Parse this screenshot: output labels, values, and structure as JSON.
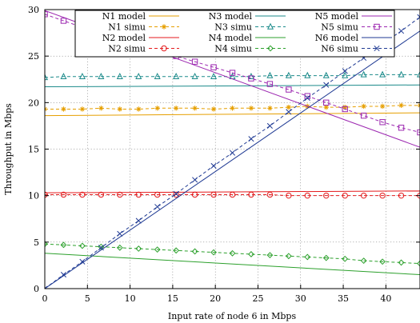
{
  "chart_data": {
    "type": "line",
    "xlabel": "Input rate of node 6 in Mbps",
    "ylabel": "Throughput in Mbps",
    "xlim": [
      0,
      44
    ],
    "ylim": [
      0,
      30
    ],
    "xticks": [
      0,
      5,
      10,
      15,
      20,
      25,
      30,
      35,
      40
    ],
    "yticks": [
      0,
      5,
      10,
      15,
      20,
      25,
      30
    ],
    "grid": true,
    "legend_position": "top",
    "series": [
      {
        "name": "N1 model",
        "color": "#e69f00",
        "style": "solid",
        "marker": "none",
        "x": [
          0,
          44
        ],
        "y": [
          18.6,
          18.9
        ]
      },
      {
        "name": "N1 simu",
        "color": "#e69f00",
        "style": "dashed",
        "marker": "asterisk",
        "x": [
          0,
          2.2,
          4.4,
          6.6,
          8.8,
          11,
          13.2,
          15.4,
          17.6,
          19.8,
          22,
          24.2,
          26.4,
          28.6,
          30.8,
          33,
          35.2,
          37.4,
          39.6,
          41.8,
          44
        ],
        "y": [
          19.3,
          19.3,
          19.3,
          19.4,
          19.3,
          19.3,
          19.4,
          19.4,
          19.4,
          19.3,
          19.4,
          19.4,
          19.4,
          19.5,
          19.6,
          19.5,
          19.5,
          19.6,
          19.6,
          19.7,
          19.7
        ]
      },
      {
        "name": "N2 model",
        "color": "#e41a1c",
        "style": "solid",
        "marker": "none",
        "x": [
          0,
          44
        ],
        "y": [
          10.3,
          10.5
        ]
      },
      {
        "name": "N2 simu",
        "color": "#e41a1c",
        "style": "dashed",
        "marker": "circle",
        "x": [
          0,
          2.2,
          4.4,
          6.6,
          8.8,
          11,
          13.2,
          15.4,
          17.6,
          19.8,
          22,
          24.2,
          26.4,
          28.6,
          30.8,
          33,
          35.2,
          37.4,
          39.6,
          41.8,
          44
        ],
        "y": [
          10.1,
          10.1,
          10.1,
          10.1,
          10.1,
          10.1,
          10.1,
          10.1,
          10.1,
          10.1,
          10.1,
          10.1,
          10.1,
          10.0,
          10.0,
          10.0,
          10.0,
          10.0,
          10.0,
          10.0,
          10.0
        ]
      },
      {
        "name": "N3 model",
        "color": "#1b8a8a",
        "style": "solid",
        "marker": "none",
        "x": [
          0,
          44
        ],
        "y": [
          21.7,
          21.9
        ]
      },
      {
        "name": "N3 simu",
        "color": "#1b8a8a",
        "style": "dashed",
        "marker": "triangle",
        "x": [
          0,
          2.2,
          4.4,
          6.6,
          8.8,
          11,
          13.2,
          15.4,
          17.6,
          19.8,
          22,
          24.2,
          26.4,
          28.6,
          30.8,
          33,
          35.2,
          37.4,
          39.6,
          41.8,
          44
        ],
        "y": [
          22.7,
          22.8,
          22.8,
          22.8,
          22.8,
          22.8,
          22.8,
          22.8,
          22.8,
          22.8,
          22.8,
          22.8,
          22.9,
          22.9,
          22.9,
          22.9,
          22.9,
          23.0,
          23.0,
          23.0,
          23.0
        ]
      },
      {
        "name": "N4 model",
        "color": "#2ca02c",
        "style": "solid",
        "marker": "none",
        "x": [
          0,
          44
        ],
        "y": [
          3.8,
          1.5
        ]
      },
      {
        "name": "N4 simu",
        "color": "#2ca02c",
        "style": "dashed",
        "marker": "diamond",
        "x": [
          0,
          2.2,
          4.4,
          6.6,
          8.8,
          11,
          13.2,
          15.4,
          17.6,
          19.8,
          22,
          24.2,
          26.4,
          28.6,
          30.8,
          33,
          35.2,
          37.4,
          39.6,
          41.8,
          44
        ],
        "y": [
          4.8,
          4.7,
          4.6,
          4.5,
          4.4,
          4.3,
          4.2,
          4.1,
          4.0,
          3.9,
          3.8,
          3.7,
          3.6,
          3.5,
          3.4,
          3.3,
          3.2,
          3.0,
          2.9,
          2.8,
          2.7
        ]
      },
      {
        "name": "N5 model",
        "color": "#9c27b0",
        "style": "solid",
        "marker": "none",
        "x": [
          0,
          44
        ],
        "y": [
          29.9,
          15.2
        ]
      },
      {
        "name": "N5 simu",
        "color": "#9c27b0",
        "style": "dashed",
        "marker": "square",
        "x": [
          0,
          2.2,
          4.4,
          6.6,
          8.8,
          11,
          13.2,
          15.4,
          17.6,
          19.8,
          22,
          24.2,
          26.4,
          28.6,
          30.8,
          33,
          35.2,
          37.4,
          39.6,
          41.8,
          44
        ],
        "y": [
          29.5,
          28.8,
          28.1,
          27.4,
          26.8,
          26.2,
          25.6,
          25.0,
          24.4,
          23.8,
          23.2,
          22.6,
          22.0,
          21.4,
          20.7,
          20.0,
          19.3,
          18.6,
          17.9,
          17.3,
          16.8
        ]
      },
      {
        "name": "N6 model",
        "color": "#1f3a93",
        "style": "solid",
        "marker": "none",
        "x": [
          0,
          44
        ],
        "y": [
          0,
          27.7
        ]
      },
      {
        "name": "N6 simu",
        "color": "#1f3a93",
        "style": "dashed",
        "marker": "cross",
        "x": [
          0,
          2.2,
          4.4,
          6.6,
          8.8,
          11,
          13.2,
          15.4,
          17.6,
          19.8,
          22,
          24.2,
          26.4,
          28.6,
          30.8,
          33,
          35.2,
          37.4,
          39.6,
          41.8,
          44
        ],
        "y": [
          0,
          1.5,
          2.9,
          4.4,
          5.9,
          7.3,
          8.8,
          10.2,
          11.7,
          13.2,
          14.6,
          16.1,
          17.5,
          19.0,
          20.5,
          21.9,
          23.4,
          24.8,
          26.3,
          27.7,
          29.2
        ]
      }
    ]
  }
}
